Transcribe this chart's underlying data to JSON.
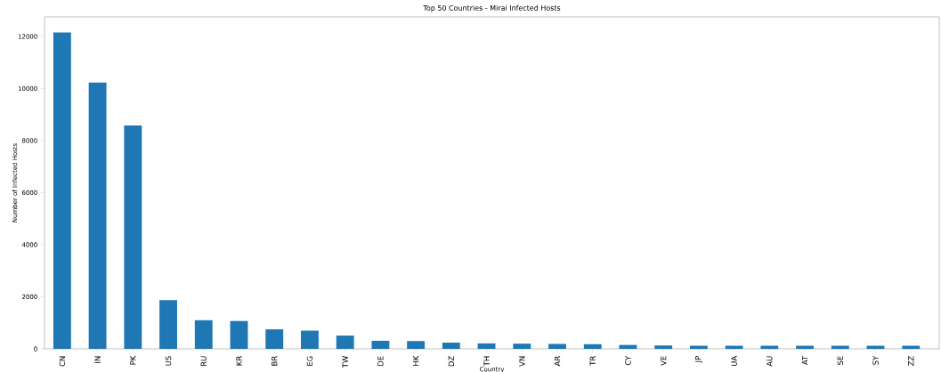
{
  "chart_data": {
    "type": "bar",
    "title": "Top 50 Countries - Mirai Infected Hosts",
    "xlabel": "Country",
    "ylabel": "Number of Infected Hosts",
    "categories": [
      "CN",
      "IN",
      "PK",
      "US",
      "RU",
      "KR",
      "BR",
      "EG",
      "TW",
      "DE",
      "HK",
      "DZ",
      "TH",
      "VN",
      "AR",
      "TR",
      "CY",
      "VE",
      "JP",
      "UA",
      "AU",
      "AT",
      "SE",
      "SY",
      "ZZ"
    ],
    "values": [
      12150,
      10230,
      8580,
      1870,
      1100,
      1070,
      750,
      700,
      510,
      310,
      300,
      240,
      210,
      200,
      190,
      180,
      150,
      130,
      120,
      120,
      120,
      120,
      120,
      120,
      120
    ],
    "color": "#1f77b4",
    "ylim": [
      0,
      12750
    ],
    "yticks": [
      0,
      2000,
      4000,
      6000,
      8000,
      10000,
      12000
    ]
  }
}
